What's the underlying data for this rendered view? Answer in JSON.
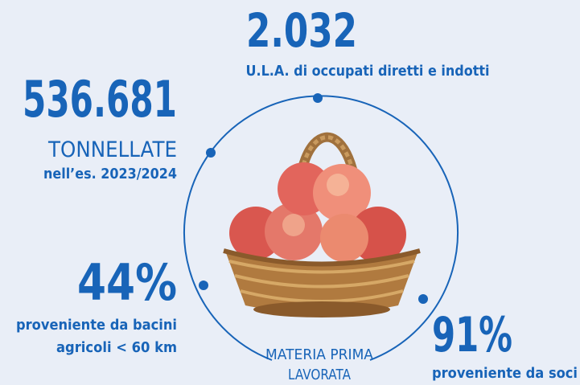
{
  "stats": [
    {
      "value": "2.032",
      "label": "U.L.A. di occupati diretti e indotti"
    },
    {
      "value": "536.681",
      "unit": "TONNELLATE",
      "label": "nell’es. 2023/2024"
    },
    {
      "value": "44%",
      "label": [
        "proveniente da bacini",
        "agricoli < 60 km"
      ]
    },
    {
      "value": "91%",
      "label": "proveniente da soci"
    }
  ],
  "center_label": [
    "MATERIA PRIMA",
    "LAVORATA"
  ]
}
